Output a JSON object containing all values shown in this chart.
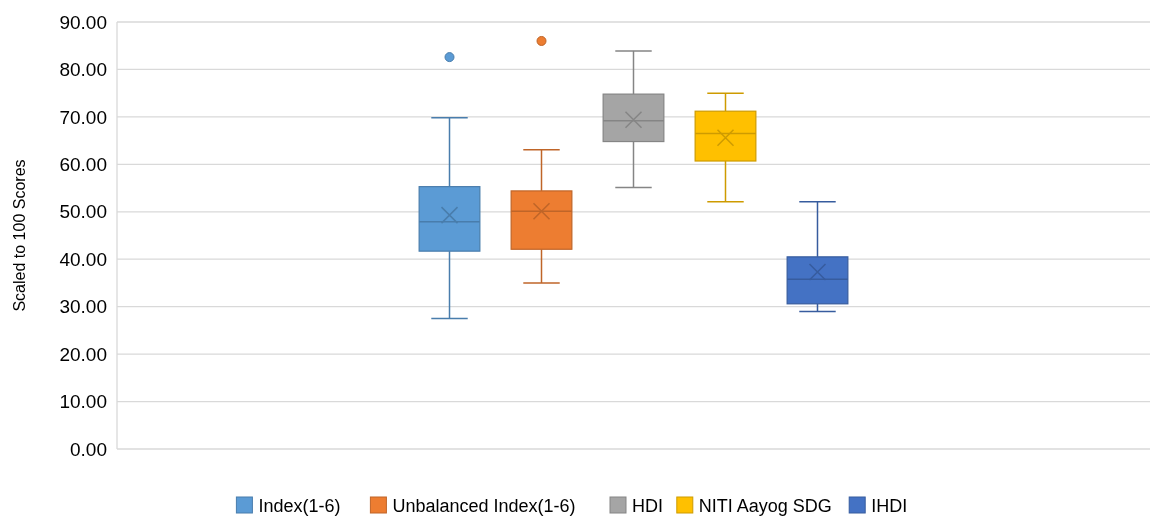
{
  "chart_data": {
    "type": "box",
    "ylabel": "Scaled to 100 Scores",
    "categories": [
      null
    ],
    "ylim": [
      0,
      90
    ],
    "yticks": [
      {
        "value": 0,
        "label": "0.00"
      },
      {
        "value": 10,
        "label": "10.00"
      },
      {
        "value": 20,
        "label": "20.00"
      },
      {
        "value": 30,
        "label": "30.00"
      },
      {
        "value": 40,
        "label": "40.00"
      },
      {
        "value": 50,
        "label": "50.00"
      },
      {
        "value": 60,
        "label": "60.00"
      },
      {
        "value": 70,
        "label": "70.00"
      },
      {
        "value": 80,
        "label": "80.00"
      },
      {
        "value": 90,
        "label": "90.00"
      }
    ],
    "grid": "y",
    "legend": "bottom",
    "series": [
      {
        "name": "Index(1-6)",
        "color": "#5b9bd5",
        "boxes": [
          {
            "low": 27.5,
            "q1": 41.7,
            "median": 47.9,
            "q3": 55.3,
            "high": 69.8,
            "mean": 49.3,
            "outliers": [
              82.6
            ]
          }
        ]
      },
      {
        "name": "Unbalanced Index(1-6)",
        "color": "#ed7d31",
        "boxes": [
          {
            "low": 35.0,
            "q1": 42.1,
            "median": 50.1,
            "q3": 54.4,
            "high": 63.1,
            "mean": 50.1,
            "outliers": [
              86.0
            ]
          }
        ]
      },
      {
        "name": "HDI",
        "color": "#a5a5a5",
        "boxes": [
          {
            "low": 55.1,
            "q1": 64.8,
            "median": 69.2,
            "q3": 74.8,
            "high": 83.9,
            "mean": 69.4
          }
        ]
      },
      {
        "name": "NITI Aayog SDG",
        "color": "#ffc000",
        "boxes": [
          {
            "low": 52.1,
            "q1": 60.7,
            "median": 66.5,
            "q3": 71.2,
            "high": 75.0,
            "mean": 65.6
          }
        ]
      },
      {
        "name": "IHDI",
        "color": "#4472c4",
        "boxes": [
          {
            "low": 29.0,
            "q1": 30.6,
            "median": 35.8,
            "q3": 40.5,
            "high": 52.1,
            "mean": 37.3
          }
        ]
      }
    ]
  }
}
